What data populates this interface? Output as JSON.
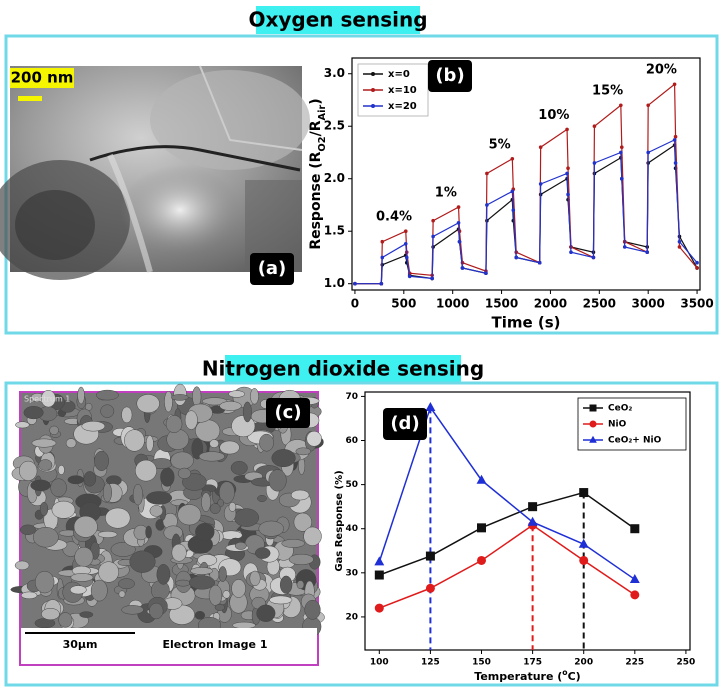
{
  "sections": [
    {
      "title": "Oxygen sensing"
    },
    {
      "title": "Nitrogen dioxide sensing"
    }
  ],
  "images": [
    {
      "panel": "(a)",
      "scale_label": "200 nm"
    },
    {
      "panel": "(c)",
      "header": "Spectrum 1",
      "scale_label": "30µm",
      "caption": "Electron Image 1"
    }
  ],
  "chart_data": [
    {
      "type": "line",
      "panel": "(b)",
      "xlabel": "Time (s)",
      "ylabel": [
        "Response (R",
        "O2",
        "/R",
        "Air",
        ")"
      ],
      "x": [
        0,
        270,
        280,
        520,
        530,
        560,
        790,
        800,
        1060,
        1070,
        1100,
        1340,
        1350,
        1610,
        1620,
        1650,
        1890,
        1900,
        2170,
        2180,
        2210,
        2440,
        2450,
        2720,
        2730,
        2760,
        2990,
        3000,
        3270,
        3280,
        3320,
        3500
      ],
      "series": [
        {
          "name": "x=0",
          "color": "#111111",
          "marker": "circle",
          "values": [
            1.0,
            1.0,
            1.18,
            1.27,
            1.2,
            1.08,
            1.05,
            1.35,
            1.52,
            1.4,
            1.15,
            1.1,
            1.6,
            1.8,
            1.6,
            1.25,
            1.2,
            1.85,
            2.0,
            1.8,
            1.35,
            1.3,
            2.05,
            2.2,
            2.0,
            1.4,
            1.35,
            2.15,
            2.32,
            2.1,
            1.45,
            1.15
          ]
        },
        {
          "name": "x=10",
          "color": "#b01c1c",
          "marker": "circle",
          "values": [
            1.0,
            1.0,
            1.4,
            1.5,
            1.3,
            1.1,
            1.08,
            1.6,
            1.73,
            1.5,
            1.2,
            1.12,
            2.05,
            2.19,
            1.9,
            1.3,
            1.2,
            2.3,
            2.47,
            2.1,
            1.35,
            1.25,
            2.5,
            2.7,
            2.3,
            1.4,
            1.3,
            2.7,
            2.9,
            2.4,
            1.35,
            1.15
          ]
        },
        {
          "name": "x=20",
          "color": "#2233cc",
          "marker": "circle",
          "values": [
            1.0,
            1.0,
            1.25,
            1.38,
            1.25,
            1.07,
            1.05,
            1.45,
            1.58,
            1.4,
            1.15,
            1.1,
            1.75,
            1.88,
            1.7,
            1.25,
            1.2,
            1.95,
            2.05,
            1.85,
            1.3,
            1.25,
            2.15,
            2.25,
            2.0,
            1.35,
            1.3,
            2.25,
            2.37,
            2.15,
            1.4,
            1.2
          ]
        }
      ],
      "annotations": [
        "0.4%",
        "1%",
        "5%",
        "10%",
        "15%",
        "20%"
      ],
      "xlim": [
        -30,
        3530
      ],
      "xticks": [
        0,
        500,
        1000,
        1500,
        2000,
        2500,
        3000,
        3500
      ],
      "ylim": [
        0.94,
        3.15
      ],
      "yticks": [
        {
          "value": 1,
          "label": "1.0"
        },
        1.5,
        {
          "value": 2,
          "label": "2.0"
        },
        2.5,
        {
          "value": 3,
          "label": "3.0"
        }
      ],
      "grid": false,
      "legend": "upper left"
    },
    {
      "type": "line",
      "panel": "(d)",
      "xlabel": [
        "Temperature (",
        "o",
        "C)"
      ],
      "ylabel": "Gas Response (%)",
      "x": [
        100,
        125,
        150,
        175,
        200,
        225
      ],
      "series": [
        {
          "name": "CeO₂",
          "color": "#111111",
          "marker": "square",
          "values": [
            29.5,
            33.8,
            40.2,
            45,
            48.2,
            40
          ]
        },
        {
          "name": "NiO",
          "color": "#e01b1b",
          "marker": "circle",
          "values": [
            22,
            26.5,
            32.8,
            40.8,
            32.8,
            25
          ]
        },
        {
          "name": "CeO₂+ NiO",
          "color": "#1f2fd6",
          "marker": "triangle",
          "values": [
            32.5,
            67.5,
            51,
            41.5,
            36.5,
            28.5
          ]
        }
      ],
      "xlim": [
        93,
        252
      ],
      "xticks": [
        100,
        125,
        150,
        175,
        200,
        225,
        250
      ],
      "ylim": [
        12.5,
        71
      ],
      "yticks": [
        20,
        30,
        40,
        50,
        60,
        70
      ],
      "grid": false,
      "legend": "upper right",
      "peak_lines": true
    }
  ]
}
